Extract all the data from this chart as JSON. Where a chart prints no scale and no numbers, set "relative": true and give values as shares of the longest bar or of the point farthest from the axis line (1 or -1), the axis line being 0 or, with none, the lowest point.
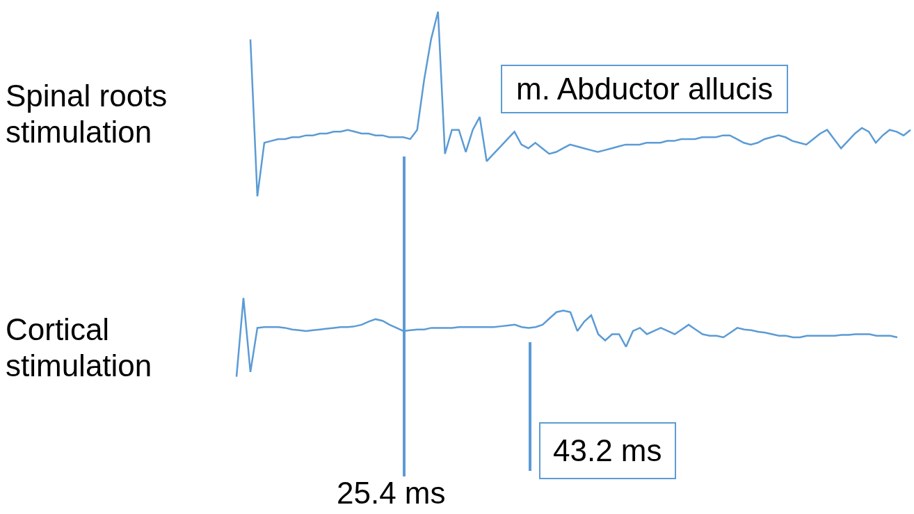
{
  "chart_data": [
    {
      "type": "line",
      "ylabel": "Spinal roots stimulation",
      "relative": true,
      "color": "#5b9bd5",
      "annotations": [
        "m. Abductor allucis"
      ],
      "categories": [
        null,
        null,
        null,
        null,
        null,
        null,
        null,
        null,
        null,
        null,
        null,
        null,
        null,
        null,
        null,
        null,
        null,
        null,
        null,
        null,
        null,
        null,
        null,
        null,
        null,
        null,
        null,
        null,
        null,
        null,
        null,
        null,
        null,
        null,
        null,
        null,
        null,
        null,
        null,
        null,
        null,
        null,
        null,
        null,
        null,
        null,
        null,
        null,
        null,
        null,
        null,
        null,
        null,
        null,
        null,
        null,
        null,
        null,
        null,
        null,
        null,
        null,
        null,
        null,
        null,
        null,
        null,
        null,
        null,
        null,
        null,
        null,
        null,
        null,
        null,
        null,
        null,
        null,
        null,
        null,
        null,
        null,
        null,
        null,
        null,
        null,
        null,
        null,
        null,
        null,
        null,
        null,
        null,
        null,
        null,
        null
      ],
      "values": [
        0.85,
        0,
        0.29,
        0.3,
        0.31,
        0.31,
        0.32,
        0.32,
        0.33,
        0.33,
        0.34,
        0.34,
        0.35,
        0.35,
        0.36,
        0.35,
        0.34,
        0.34,
        0.33,
        0.33,
        0.32,
        0.32,
        0.32,
        0.31,
        0.36,
        0.63,
        0.85,
        1,
        0.23,
        0.36,
        0.36,
        0.24,
        0.36,
        0.43,
        0.19,
        0.23,
        0.27,
        0.31,
        0.35,
        0.28,
        0.26,
        0.29,
        0.26,
        0.23,
        0.24,
        0.26,
        0.28,
        0.27,
        0.26,
        0.25,
        0.24,
        0.25,
        0.26,
        0.27,
        0.28,
        0.28,
        0.28,
        0.29,
        0.29,
        0.29,
        0.3,
        0.3,
        0.31,
        0.31,
        0.31,
        0.32,
        0.32,
        0.32,
        0.33,
        0.33,
        0.31,
        0.29,
        0.28,
        0.29,
        0.31,
        0.32,
        0.33,
        0.32,
        0.3,
        0.29,
        0.28,
        0.31,
        0.34,
        0.36,
        0.31,
        0.26,
        0.3,
        0.34,
        0.37,
        0.35,
        0.29,
        0.33,
        0.36,
        0.35,
        0.33,
        0.36
      ]
    },
    {
      "type": "line",
      "ylabel": "Cortical stimulation",
      "relative": true,
      "color": "#5b9bd5",
      "annotations": [
        "25.4 ms",
        "43.2 ms"
      ],
      "categories": [
        null,
        null,
        null,
        null,
        null,
        null,
        null,
        null,
        null,
        null,
        null,
        null,
        null,
        null,
        null,
        null,
        null,
        null,
        null,
        null,
        null,
        null,
        null,
        null,
        null,
        null,
        null,
        null,
        null,
        null,
        null,
        null,
        null,
        null,
        null,
        null,
        null,
        null,
        null,
        null,
        null,
        null,
        null,
        null,
        null,
        null,
        null,
        null,
        null,
        null,
        null,
        null,
        null,
        null,
        null,
        null,
        null,
        null,
        null,
        null,
        null,
        null,
        null,
        null,
        null,
        null,
        null,
        null,
        null,
        null,
        null,
        null,
        null,
        null,
        null,
        null,
        null,
        null,
        null,
        null,
        null,
        null,
        null,
        null,
        null,
        null,
        null,
        null,
        null,
        null,
        null,
        null,
        null,
        null,
        null,
        null
      ],
      "values": [
        0,
        1,
        0.06,
        0.62,
        0.63,
        0.63,
        0.63,
        0.62,
        0.6,
        0.59,
        0.58,
        0.59,
        0.6,
        0.61,
        0.62,
        0.63,
        0.63,
        0.64,
        0.66,
        0.7,
        0.73,
        0.71,
        0.66,
        0.62,
        0.58,
        0.59,
        0.6,
        0.6,
        0.62,
        0.62,
        0.62,
        0.62,
        0.63,
        0.63,
        0.63,
        0.63,
        0.63,
        0.63,
        0.64,
        0.65,
        0.66,
        0.63,
        0.62,
        0.63,
        0.66,
        0.74,
        0.82,
        0.84,
        0.82,
        0.58,
        0.7,
        0.78,
        0.54,
        0.46,
        0.54,
        0.54,
        0.38,
        0.58,
        0.62,
        0.54,
        0.58,
        0.62,
        0.58,
        0.54,
        0.6,
        0.66,
        0.6,
        0.54,
        0.52,
        0.52,
        0.5,
        0.56,
        0.62,
        0.6,
        0.59,
        0.57,
        0.56,
        0.54,
        0.52,
        0.52,
        0.5,
        0.5,
        0.52,
        0.52,
        0.52,
        0.52,
        0.52,
        0.53,
        0.53,
        0.54,
        0.54,
        0.54,
        0.52,
        0.52,
        0.52,
        0.5
      ]
    }
  ]
}
